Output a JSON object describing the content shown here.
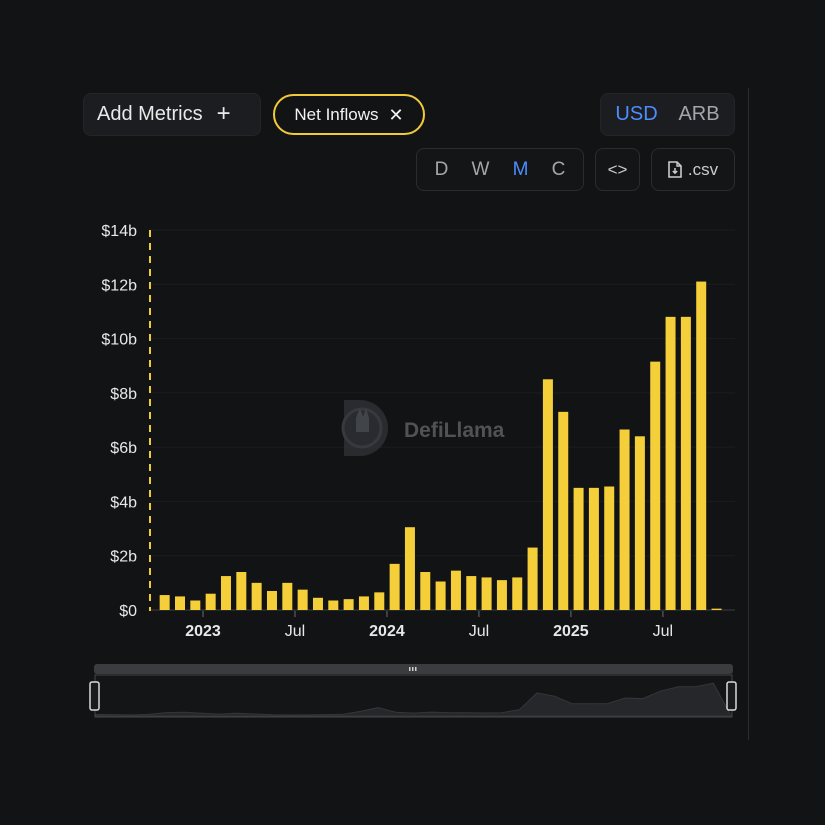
{
  "toolbar": {
    "add_metrics_label": "Add Metrics",
    "add_icon": "+",
    "metric_chip_label": "Net Inflows",
    "chip_close_icon": "✕",
    "currency_options": [
      "USD",
      "ARB"
    ],
    "currency_selected": "USD",
    "period_options": [
      "D",
      "W",
      "M",
      "C"
    ],
    "period_selected": "M",
    "embed_icon": "<>",
    "csv_label": ".csv"
  },
  "watermark": {
    "text": "DefiLlama"
  },
  "colors": {
    "bar": "#f5cf3a",
    "active": "#4d8dff",
    "chip_border": "#f1ca3a",
    "background": "#121314"
  },
  "chart_data": {
    "type": "bar",
    "title": "",
    "xlabel": "",
    "ylabel": "",
    "y_unit": "billion USD",
    "ylim": [
      0,
      14
    ],
    "y_ticks": [
      0,
      2,
      4,
      6,
      8,
      10,
      12,
      14
    ],
    "y_tick_labels": [
      "$0",
      "$2b",
      "$4b",
      "$6b",
      "$8b",
      "$10b",
      "$12b",
      "$14b"
    ],
    "x_tick_labels": [
      {
        "label": "2023",
        "index": 2.5,
        "bold": true
      },
      {
        "label": "Jul",
        "index": 8.5,
        "bold": false
      },
      {
        "label": "2024",
        "index": 14.5,
        "bold": true
      },
      {
        "label": "Jul",
        "index": 20.5,
        "bold": false
      },
      {
        "label": "2025",
        "index": 26.5,
        "bold": true
      },
      {
        "label": "Jul",
        "index": 32.5,
        "bold": false
      }
    ],
    "grid": true,
    "legend": "none",
    "series": [
      {
        "values": [
          0.55,
          0.5,
          0.35,
          0.6,
          1.25,
          1.4,
          1.0,
          0.7,
          1.0,
          0.75,
          0.45,
          0.35,
          0.4,
          0.5,
          0.65,
          1.7,
          3.05,
          1.4,
          1.05,
          1.45,
          1.25,
          1.2,
          1.1,
          1.2,
          2.3,
          8.5,
          7.3,
          4.5,
          4.5,
          4.55,
          6.65,
          6.4,
          9.15,
          10.8,
          10.8,
          12.1,
          0.05
        ]
      }
    ]
  }
}
